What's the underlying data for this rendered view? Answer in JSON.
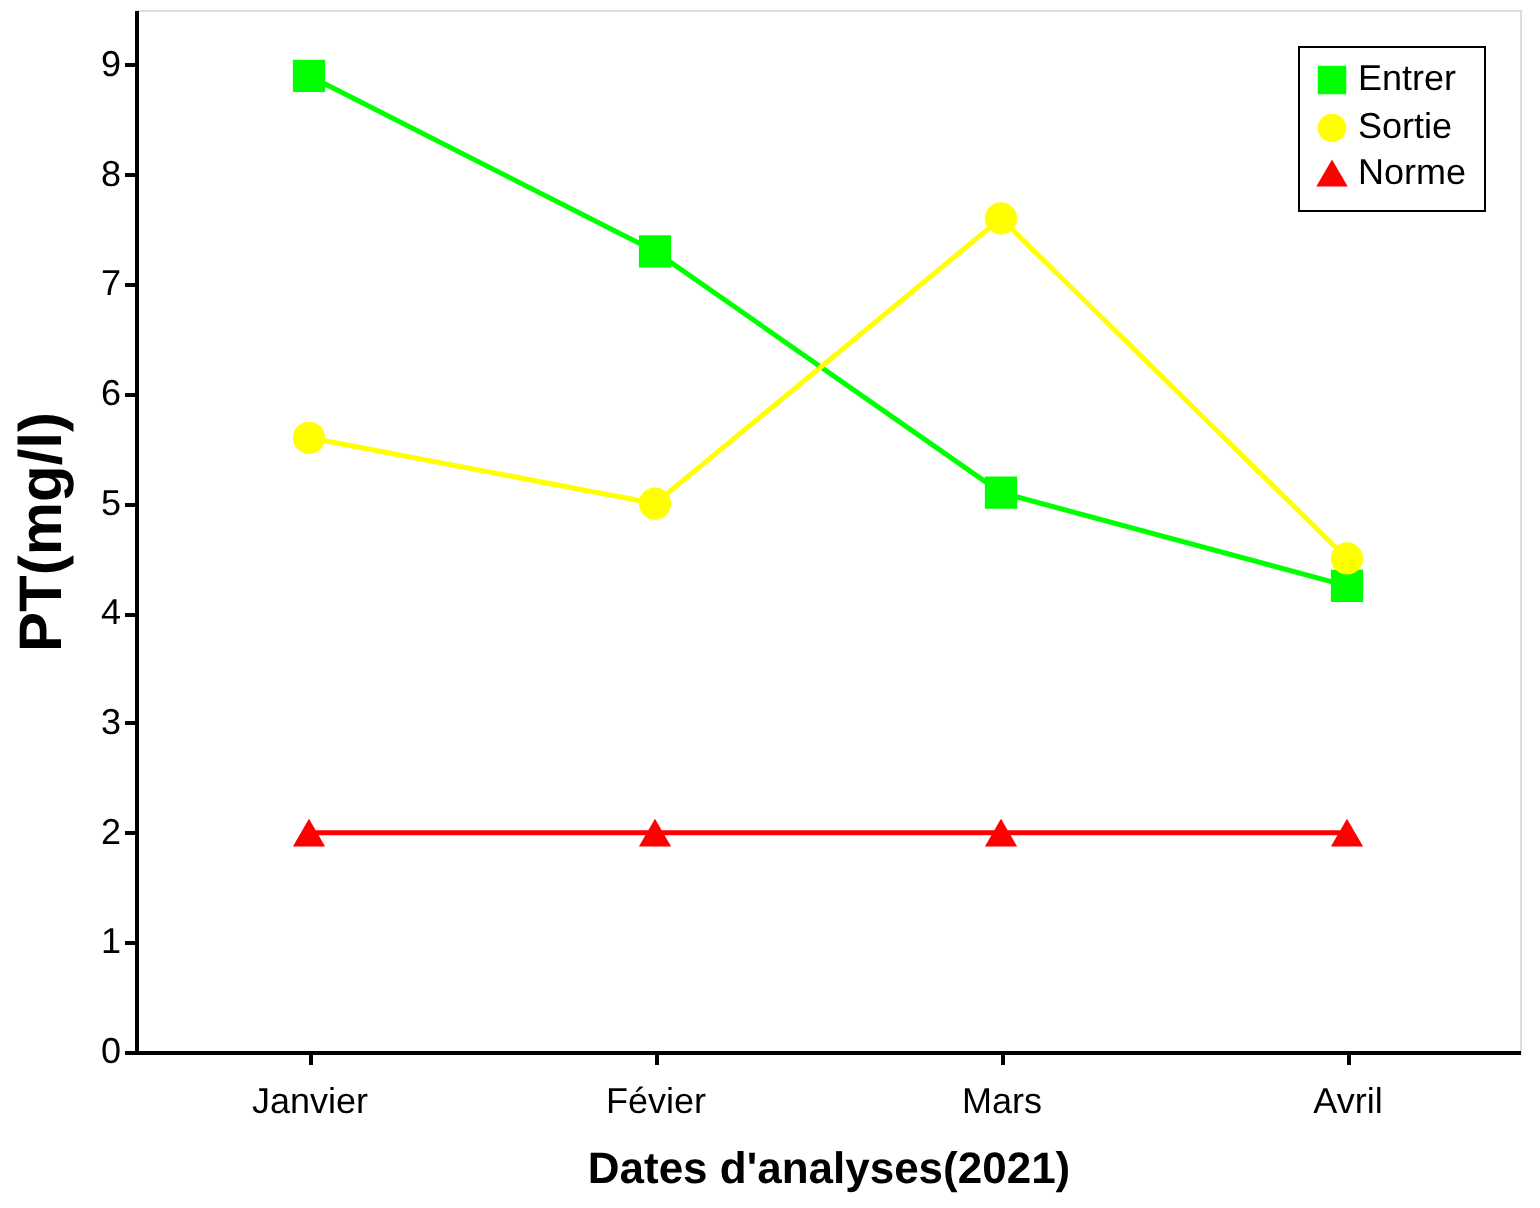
{
  "chart_data": {
    "type": "line",
    "xlabel": "Dates d'analyses(2021)",
    "ylabel": "PT(mg/l)",
    "categories": [
      "Janvier",
      "Févier",
      "Mars",
      "Avril"
    ],
    "series": [
      {
        "name": "Entrer",
        "color": "#00ff00",
        "marker": "square",
        "values": [
          8.9,
          7.3,
          5.1,
          4.25
        ]
      },
      {
        "name": "Sortie",
        "color": "#ffff00",
        "marker": "circle",
        "values": [
          5.6,
          5.0,
          7.6,
          4.5
        ]
      },
      {
        "name": "Norme",
        "color": "#ff0000",
        "marker": "triangle",
        "values": [
          2,
          2,
          2,
          2
        ]
      }
    ],
    "ylim": [
      0,
      9.5
    ],
    "yticks": [
      0,
      1,
      2,
      3,
      4,
      5,
      6,
      7,
      8,
      9
    ],
    "grid": false,
    "legend": "top right",
    "line_style": "solid"
  }
}
